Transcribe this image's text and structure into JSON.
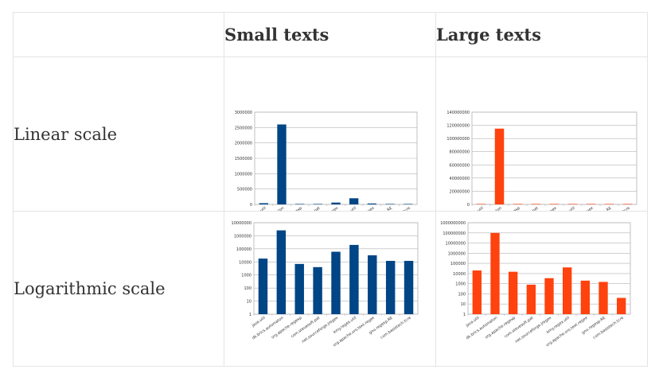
{
  "table": {
    "corner": "",
    "column_headers": [
      "Small texts",
      "Large texts"
    ],
    "row_labels": [
      "Linear scale",
      "Logarithmic scale"
    ]
  },
  "colors": {
    "small": "#004586",
    "large": "#ff420e"
  },
  "chart_data": [
    {
      "type": "bar",
      "name": "small-linear",
      "categories": [
        "java.util",
        "dk.brics.automaton",
        "org.apache.regexp",
        "com.stevesoft.pat",
        "net.sourceforge.jregex",
        "kmy.regex.util",
        "org.apache.oro.text.regex",
        "gnu.regexp.RE",
        "com.basistech.tcre"
      ],
      "values": [
        40000,
        2600000,
        5000,
        4000,
        60000,
        200000,
        30000,
        12000,
        12000
      ],
      "ylim": [
        0,
        3000000
      ],
      "yticks": [
        "0",
        "500000",
        "1000000",
        "1500000",
        "2000000",
        "2500000",
        "3000000"
      ],
      "log": false,
      "color": "#004586"
    },
    {
      "type": "bar",
      "name": "large-linear",
      "categories": [
        "java.util",
        "dk.brics.automaton",
        "org.apache.regexp",
        "com.stevesoft.pat",
        "net.sourceforge.jregex",
        "kmy.regex.util",
        "org.apache.oro.text.regex",
        "gnu.regexp.RE",
        "com.basistech.tcre"
      ],
      "values": [
        20000,
        115000000,
        15000,
        800,
        3500,
        40000,
        2000,
        1500,
        40
      ],
      "ylim": [
        0,
        140000000
      ],
      "yticks": [
        "0",
        "20000000",
        "40000000",
        "60000000",
        "80000000",
        "100000000",
        "120000000",
        "140000000"
      ],
      "log": false,
      "color": "#ff420e"
    },
    {
      "type": "bar",
      "name": "small-log",
      "categories": [
        "java.util",
        "dk.brics.automaton",
        "org.apache.regexp",
        "com.stevesoft.pat",
        "net.sourceforge.jregex",
        "kmy.regex.util",
        "org.apache.oro.text.regex",
        "gnu.regexp.RE",
        "com.basistech.tcre"
      ],
      "values": [
        18000,
        2600000,
        7000,
        4000,
        60000,
        200000,
        32000,
        12000,
        12000
      ],
      "ylim": [
        1,
        10000000
      ],
      "yticks": [
        "1",
        "10",
        "100",
        "1000",
        "10000",
        "100000",
        "1000000",
        "10000000"
      ],
      "log": true,
      "color": "#004586"
    },
    {
      "type": "bar",
      "name": "large-log",
      "categories": [
        "java.util",
        "dk.brics.automaton",
        "org.apache.regexp",
        "com.stevesoft.pat",
        "net.sourceforge.jregex",
        "kmy.regex.util",
        "org.apache.oro.text.regex",
        "gnu.regexp.RE",
        "com.basistech.tcre"
      ],
      "values": [
        20000,
        100000000,
        15000,
        800,
        3500,
        40000,
        2000,
        1500,
        40
      ],
      "ylim": [
        1,
        1000000000
      ],
      "yticks": [
        "1",
        "10",
        "100",
        "1000",
        "10000",
        "100000",
        "1000000",
        "10000000",
        "100000000",
        "1000000000"
      ],
      "log": true,
      "color": "#ff420e"
    }
  ]
}
